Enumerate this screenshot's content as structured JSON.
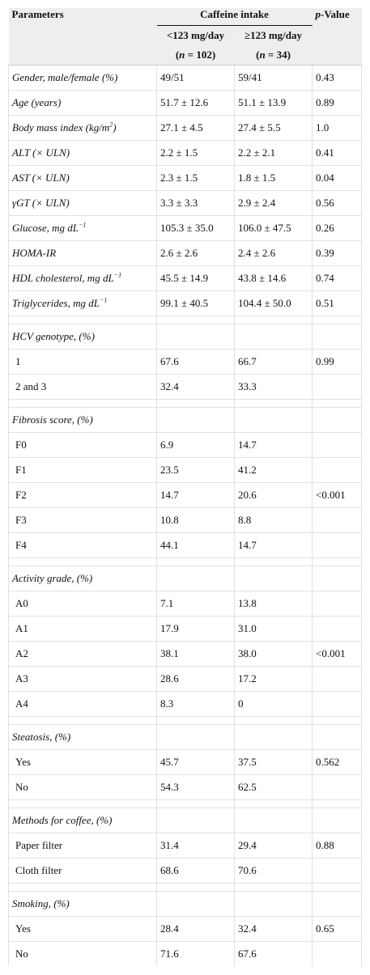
{
  "header": {
    "parameters": "Parameters",
    "caffeine_intake": "Caffeine intake",
    "p_value": "p-Value",
    "group_low": "<123 mg/day",
    "group_high": "≥123 mg/day",
    "n_low": "(n = 102)",
    "n_high": "(n = 34)"
  },
  "rows": [
    {
      "label": "Gender, male/female (%)",
      "low": "49/51",
      "high": "59/41",
      "p": "0.43"
    },
    {
      "label": "Age (years)",
      "low": "51.7 ± 12.6",
      "high": "51.1 ± 13.9",
      "p": "0.89"
    },
    {
      "label": "Body mass index (kg/m",
      "sup": "2",
      "label_end": ")",
      "low": "27.1 ± 4.5",
      "high": "27.4 ± 5.5",
      "p": "1.0"
    },
    {
      "label": "ALT (× ULN)",
      "low": "2.2 ± 1.5",
      "high": "2.2 ± 2.1",
      "p": "0.41"
    },
    {
      "label": "AST (× ULN)",
      "low": "2.3 ± 1.5",
      "high": "1.8 ± 1.5",
      "p": "0.04"
    },
    {
      "label": "γGT (× ULN)",
      "low": "3.3 ± 3.3",
      "high": "2.9 ± 2.4",
      "p": "0.56"
    },
    {
      "label": "Glucose, mg dL",
      "sup": "−1",
      "low": "105.3 ± 35.0",
      "high": "106.0 ± 47.5",
      "p": "0.26"
    },
    {
      "label": "HOMA-IR",
      "low": "2.6 ± 2.6",
      "high": "2.4 ± 2.6",
      "p": "0.39"
    },
    {
      "label": "HDL cholesterol, mg dL",
      "sup": "−1",
      "low": "45.5 ± 14.9",
      "high": "43.8 ± 14.6",
      "p": "0.74"
    },
    {
      "label": "Triglycerides, mg dL",
      "sup": "−1",
      "low": "99.1 ± 40.5",
      "high": "104.4 ± 50.0",
      "p": "0.51"
    },
    {
      "spacer": true
    },
    {
      "label": "HCV genotype, (%)",
      "low": "",
      "high": "",
      "p": ""
    },
    {
      "label": "1",
      "sub": true,
      "low": "67.6",
      "high": "66.7",
      "p": "0.99"
    },
    {
      "label": "2 and 3",
      "sub": true,
      "low": "32.4",
      "high": "33.3",
      "p": ""
    },
    {
      "spacer": true
    },
    {
      "label": "Fibrosis score, (%)",
      "low": "",
      "high": "",
      "p": ""
    },
    {
      "label": "F0",
      "sub": true,
      "low": "6.9",
      "high": "14.7",
      "p": ""
    },
    {
      "label": "F1",
      "sub": true,
      "low": "23.5",
      "high": "41.2",
      "p": ""
    },
    {
      "label": "F2",
      "sub": true,
      "low": "14.7",
      "high": "20.6",
      "p": "<0.001"
    },
    {
      "label": "F3",
      "sub": true,
      "low": "10.8",
      "high": "8.8",
      "p": ""
    },
    {
      "label": "F4",
      "sub": true,
      "low": "44.1",
      "high": "14.7",
      "p": ""
    },
    {
      "spacer": true
    },
    {
      "label": "Activity grade, (%)",
      "low": "",
      "high": "",
      "p": ""
    },
    {
      "label": "A0",
      "sub": true,
      "low": "7.1",
      "high": "13.8",
      "p": ""
    },
    {
      "label": "A1",
      "sub": true,
      "low": "17.9",
      "high": "31.0",
      "p": ""
    },
    {
      "label": "A2",
      "sub": true,
      "low": "38.1",
      "high": "38.0",
      "p": "<0.001"
    },
    {
      "label": "A3",
      "sub": true,
      "low": "28.6",
      "high": "17.2",
      "p": ""
    },
    {
      "label": "A4",
      "sub": true,
      "low": "8.3",
      "high": "0",
      "p": ""
    },
    {
      "spacer": true
    },
    {
      "label": "Steatosis, (%)",
      "low": "",
      "high": "",
      "p": ""
    },
    {
      "label": "Yes",
      "sub": true,
      "low": "45.7",
      "high": "37.5",
      "p": "0.562"
    },
    {
      "label": "No",
      "sub": true,
      "low": "54.3",
      "high": "62.5",
      "p": ""
    },
    {
      "spacer": true
    },
    {
      "label": "Methods for coffee, (%)",
      "low": "",
      "high": "",
      "p": ""
    },
    {
      "label": "Paper filter",
      "sub": true,
      "low": "31.4",
      "high": "29.4",
      "p": "0.88"
    },
    {
      "label": "Cloth filter",
      "sub": true,
      "low": "68.6",
      "high": "70.6",
      "p": ""
    },
    {
      "spacer": true
    },
    {
      "label": "Smoking, (%)",
      "low": "",
      "high": "",
      "p": ""
    },
    {
      "label": "Yes",
      "sub": true,
      "low": "28.4",
      "high": "32.4",
      "p": "0.65"
    },
    {
      "label": "No",
      "sub": true,
      "low": "71.6",
      "high": "67.6",
      "p": ""
    }
  ]
}
